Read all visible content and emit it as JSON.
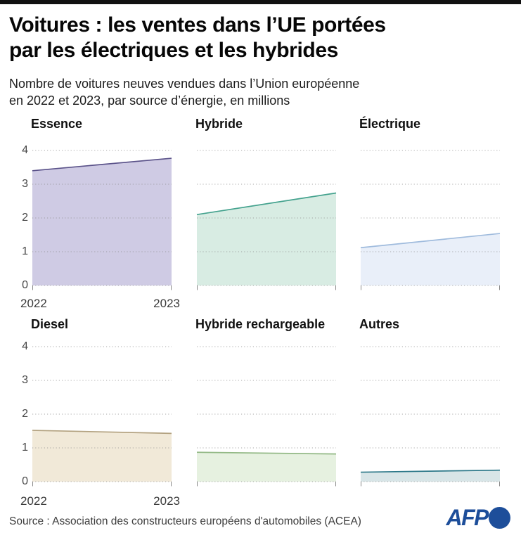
{
  "header": {
    "title_line1": "Voitures : les ventes dans l’UE portées",
    "title_line2": "par les électriques et les hybrides",
    "subtitle_line1": "Nombre de voitures neuves vendues dans l’Union européenne",
    "subtitle_line2": "en 2022 et 2023, par source d’énergie, en millions"
  },
  "chart_data": {
    "type": "area",
    "layout": "2 rows x 3 columns of small multiples; y-axis tick labels and year labels shown only on first column of each row; dotted horizontal gridlines",
    "x": [
      2022,
      2023
    ],
    "x_labels": [
      "2022",
      "2023"
    ],
    "ylim": [
      0,
      4
    ],
    "yticks": [
      0,
      1,
      2,
      3,
      4
    ],
    "grid": "dotted",
    "series": [
      {
        "name": "Essence",
        "values": [
          3.4,
          3.77
        ],
        "fill": "#cfcbe4",
        "line": "#5a5289"
      },
      {
        "name": "Hybride",
        "values": [
          2.1,
          2.74
        ],
        "fill": "#d8ece3",
        "line": "#44a28e"
      },
      {
        "name": "Électrique",
        "values": [
          1.12,
          1.54
        ],
        "fill": "#e9eff9",
        "line": "#9fbbdd"
      },
      {
        "name": "Diesel",
        "values": [
          1.52,
          1.43
        ],
        "fill": "#f1e9d8",
        "line": "#b2a17f"
      },
      {
        "name": "Hybride rechargeable",
        "values": [
          0.87,
          0.82
        ],
        "fill": "#e6f1e0",
        "line": "#93b986"
      },
      {
        "name": "Autres",
        "values": [
          0.28,
          0.34
        ],
        "fill": "#d8e5e7",
        "line": "#2b7788"
      }
    ]
  },
  "footer": {
    "source": "Source : Association des constructeurs européens d'automobiles (ACEA)",
    "logo_text": "AFP",
    "logo_color": "#1d4e9a"
  }
}
